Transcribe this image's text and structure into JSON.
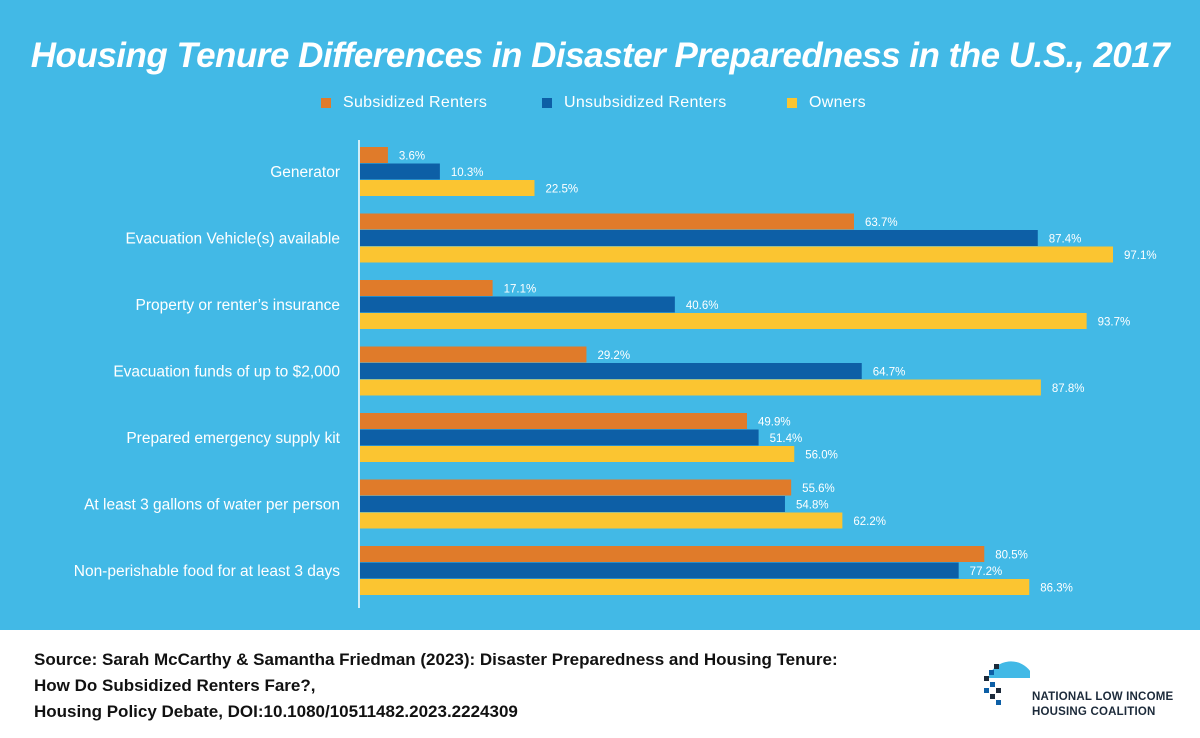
{
  "colors": {
    "background": "#42b9e6",
    "subsidized": "#e07b2a",
    "unsubsidized": "#0d5fa6",
    "owners": "#fbc531",
    "text": "#ffffff"
  },
  "chart_data": {
    "type": "bar",
    "orientation": "horizontal",
    "title": "Housing Tenure Differences in Disaster Preparedness in the U.S., 2017",
    "categories": [
      "Generator",
      "Evacuation Vehicle(s) available",
      "Property or renter’s insurance",
      "Evacuation funds of up to $2,000",
      "Prepared emergency supply kit",
      "At least 3 gallons of water per person",
      "Non-perishable food for at least 3 days"
    ],
    "series": [
      {
        "name": "Subsidized  Renters",
        "color": "#e07b2a",
        "values": [
          3.6,
          63.7,
          17.1,
          29.2,
          49.9,
          55.6,
          80.5
        ],
        "labels": [
          "3.6%",
          "63.7%",
          "17.1%",
          "29.2%",
          "49.9%",
          "55.6%",
          "80.5%"
        ]
      },
      {
        "name": "Unsubsidized  Renters",
        "color": "#0d5fa6",
        "values": [
          10.3,
          87.4,
          40.6,
          64.7,
          51.4,
          54.8,
          77.2
        ],
        "labels": [
          "10.3%",
          "87.4%",
          "40.6%",
          "64.7%",
          "51.4%",
          "54.8%",
          "77.2%"
        ]
      },
      {
        "name": "Owners",
        "color": "#fbc531",
        "values": [
          22.5,
          97.1,
          93.7,
          87.8,
          56.0,
          62.2,
          86.3
        ],
        "labels": [
          "22.5%",
          "97.1%",
          "93.7%",
          "87.8%",
          "56.0%",
          "62.2%",
          "86.3%"
        ]
      }
    ],
    "xlim": [
      0,
      100
    ],
    "legend_position": "top-center",
    "grid": false
  },
  "footer": {
    "source_line1": "Source: Sarah McCarthy & Samantha Friedman (2023): Disaster Preparedness and Housing Tenure:",
    "source_line2": "How Do Subsidized Renters Fare?,",
    "source_line3": "Housing Policy Debate, DOI:10.1080/10511482.2023.2224309"
  },
  "logo": {
    "line1": "NATIONAL LOW INCOME",
    "line2": "HOUSING COALITION"
  }
}
